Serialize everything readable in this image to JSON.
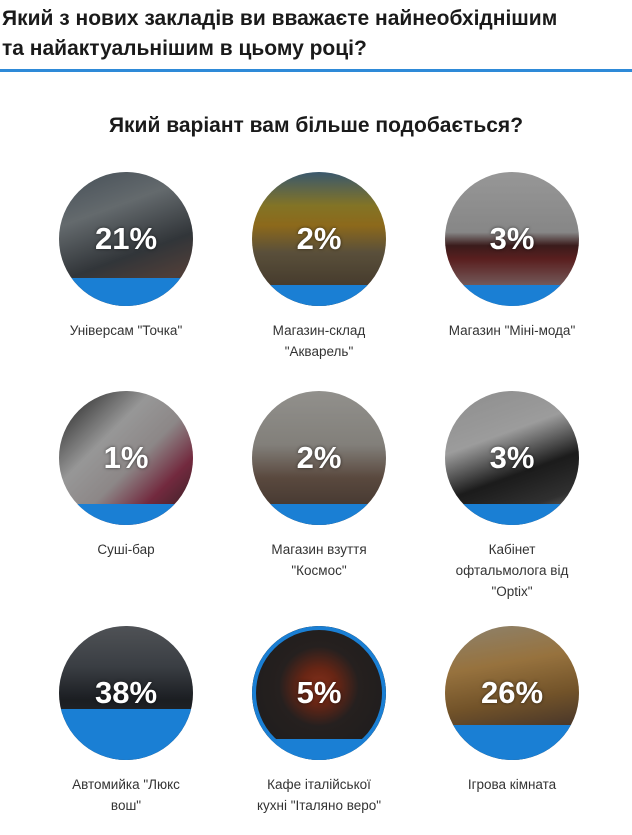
{
  "header": {
    "title": "Який з нових закладів ви вважаєте найнеобхіднішим\nта найактуальнішим в цьому році?"
  },
  "poll": {
    "question": "Який варіант вам більше подобається?",
    "accent_color": "#1a7fd4",
    "options": [
      {
        "percent_value": 21,
        "percent": "21%",
        "label": "Універсам \"Точка\""
      },
      {
        "percent_value": 2,
        "percent": "2%",
        "label": "Магазин-склад\n\"Акварель\""
      },
      {
        "percent_value": 3,
        "percent": "3%",
        "label": "Магазин \"Міні-мода\""
      },
      {
        "percent_value": 1,
        "percent": "1%",
        "label": "Суші-бар"
      },
      {
        "percent_value": 2,
        "percent": "2%",
        "label": "Магазин взуття\n\"Космос\""
      },
      {
        "percent_value": 3,
        "percent": "3%",
        "label": "Кабінет\nофтальмолога від\n\"Optix\""
      },
      {
        "percent_value": 38,
        "percent": "38%",
        "label": "Автомийка \"Люкс\nвош\""
      },
      {
        "percent_value": 5,
        "percent": "5%",
        "label": "Кафе італійської\nкухні \"Італяно веро\"",
        "selected": true
      },
      {
        "percent_value": 26,
        "percent": "26%",
        "label": "Ігрова кімната"
      }
    ]
  }
}
